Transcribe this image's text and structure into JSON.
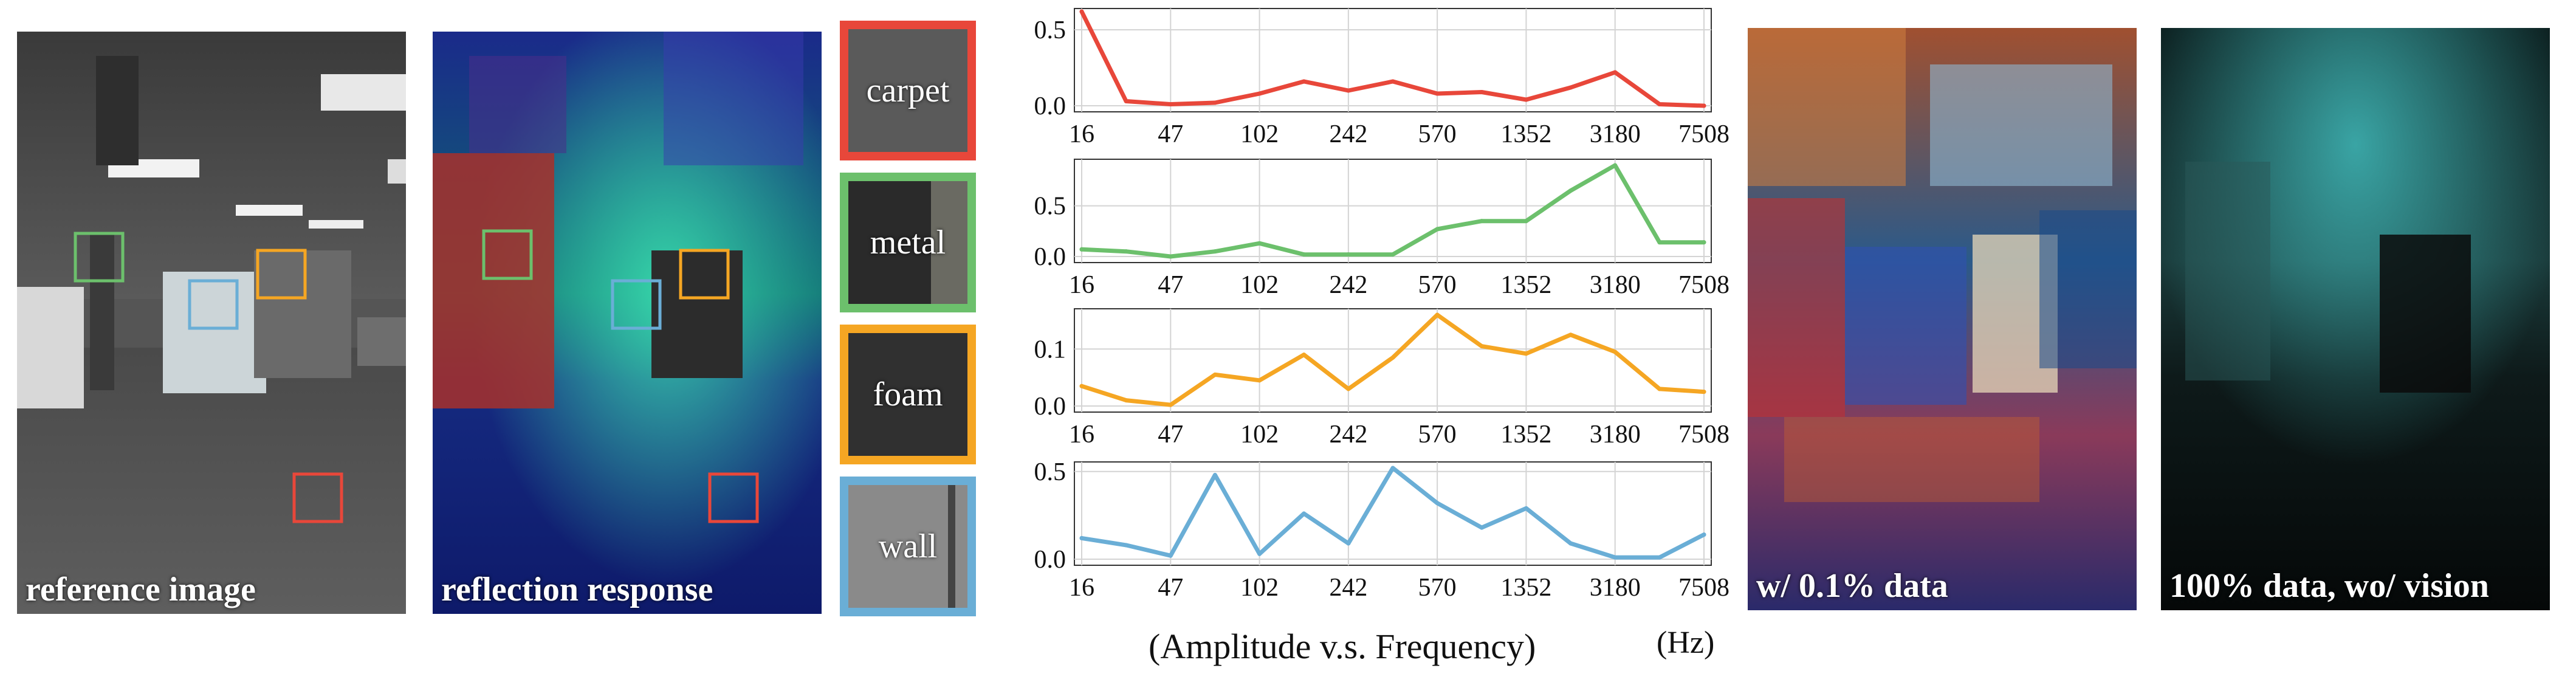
{
  "panels": {
    "reference": "reference image",
    "reflection": "reflection response",
    "low_data": "w/ 0.1% data",
    "no_vision": "100% data, wo/ vision"
  },
  "materials": [
    {
      "label": "carpet",
      "color": "#e8473a"
    },
    {
      "label": "metal",
      "color": "#6cc06c"
    },
    {
      "label": "foam",
      "color": "#f5a623"
    },
    {
      "label": "wall",
      "color": "#6aaed6"
    }
  ],
  "caption": {
    "text": "(Amplitude v.s. Frequency)",
    "unit": "(Hz)"
  },
  "chart_data": [
    {
      "type": "line",
      "series_label": "carpet",
      "color": "#e8473a",
      "x_ticks": [
        "16",
        "47",
        "102",
        "242",
        "570",
        "1352",
        "3180",
        "7508"
      ],
      "values": [
        0.62,
        0.03,
        0.01,
        0.02,
        0.08,
        0.16,
        0.1,
        0.16,
        0.08,
        0.09,
        0.04,
        0.12,
        0.22,
        0.01,
        0.0
      ],
      "ylim": [
        0,
        0.6
      ],
      "y_ticks": [
        0.0,
        0.5
      ],
      "grid": true
    },
    {
      "type": "line",
      "series_label": "metal",
      "color": "#6cc06c",
      "x_ticks": [
        "16",
        "47",
        "102",
        "242",
        "570",
        "1352",
        "3180",
        "7508"
      ],
      "values": [
        0.07,
        0.05,
        0.0,
        0.05,
        0.13,
        0.02,
        0.02,
        0.02,
        0.27,
        0.35,
        0.35,
        0.65,
        0.9,
        0.14,
        0.14
      ],
      "ylim": [
        0,
        0.9
      ],
      "y_ticks": [
        0.0,
        0.5
      ],
      "grid": true
    },
    {
      "type": "line",
      "series_label": "foam",
      "color": "#f5a623",
      "x_ticks": [
        "16",
        "47",
        "102",
        "242",
        "570",
        "1352",
        "3180",
        "7508"
      ],
      "values": [
        0.035,
        0.01,
        0.002,
        0.055,
        0.045,
        0.09,
        0.03,
        0.085,
        0.16,
        0.105,
        0.092,
        0.125,
        0.095,
        0.03,
        0.025
      ],
      "ylim": [
        0,
        0.16
      ],
      "y_ticks": [
        0.0,
        0.1
      ],
      "grid": true
    },
    {
      "type": "line",
      "series_label": "wall",
      "color": "#6aaed6",
      "x_ticks": [
        "16",
        "47",
        "102",
        "242",
        "570",
        "1352",
        "3180",
        "7508"
      ],
      "values": [
        0.12,
        0.08,
        0.02,
        0.48,
        0.03,
        0.26,
        0.09,
        0.52,
        0.32,
        0.18,
        0.29,
        0.09,
        0.01,
        0.01,
        0.14
      ],
      "ylim": [
        0,
        0.52
      ],
      "y_ticks": [
        0.0,
        0.5
      ],
      "grid": true
    }
  ]
}
